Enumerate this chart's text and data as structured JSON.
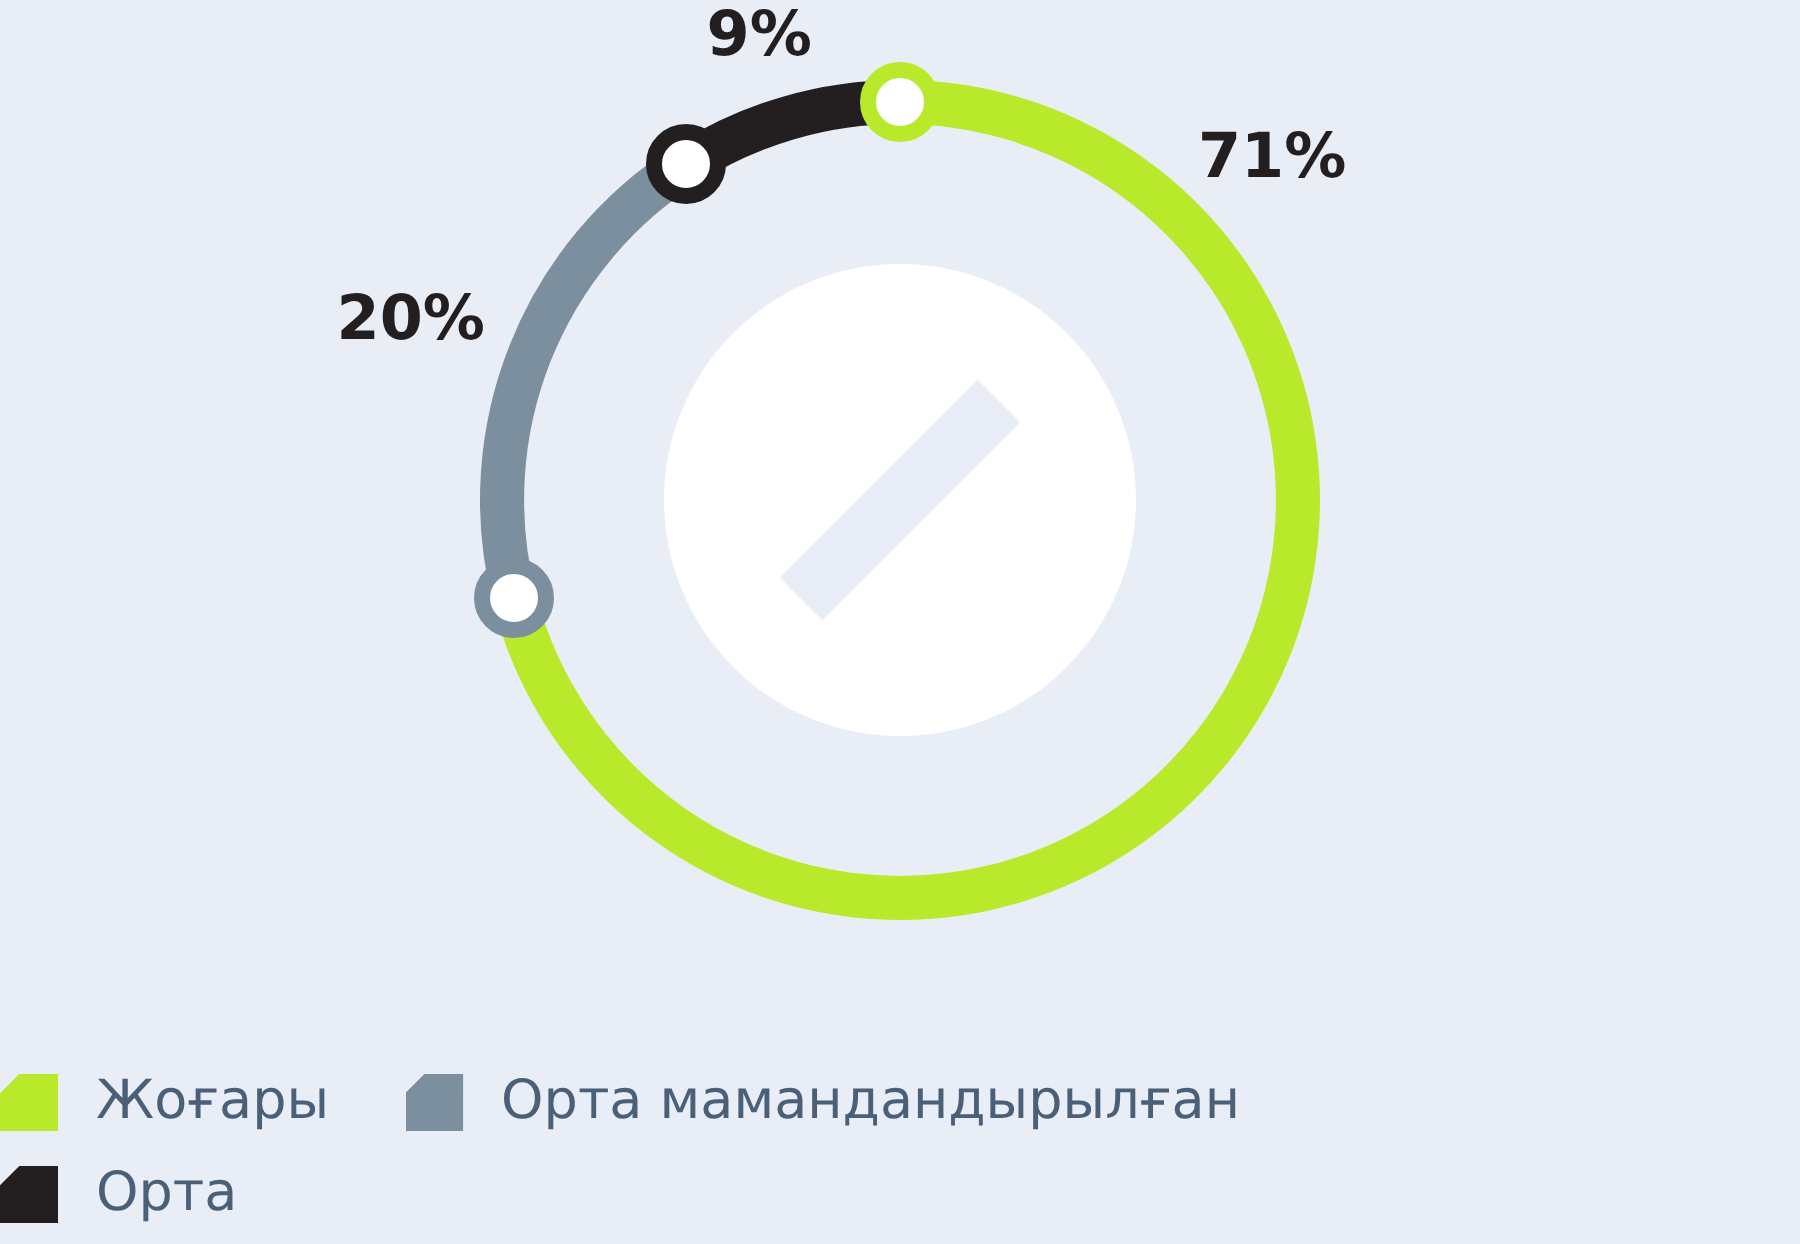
{
  "chart_data": {
    "type": "donut",
    "categories": [
      "Жоғары",
      "Орта мамандандырылған",
      "Орта"
    ],
    "values": [
      71,
      20,
      9
    ],
    "colors": [
      "#b8e92b",
      "#7b8f9e",
      "#231f20"
    ],
    "value_labels": [
      "71%",
      "20%",
      "9%"
    ],
    "legend": "bottom left"
  }
}
